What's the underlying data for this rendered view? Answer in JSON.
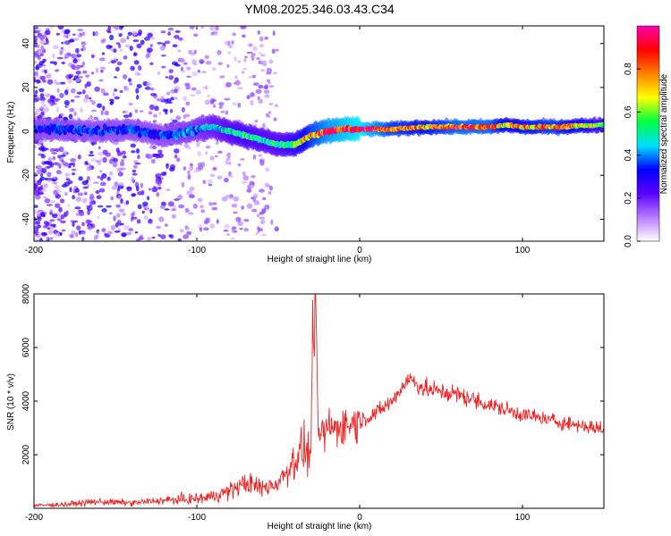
{
  "title": "YM08.2025.346.03.43.C34",
  "chart_data": [
    {
      "type": "heatmap",
      "xlabel": "Height of straight line (km)",
      "ylabel": "Frequency (Hz)",
      "xlim": [
        -200,
        150
      ],
      "ylim": [
        -50,
        48
      ],
      "xticks": [
        -200,
        -100,
        0,
        100
      ],
      "yticks": [
        -40,
        -20,
        0,
        20,
        40
      ],
      "colorbar": {
        "label": "Normalized spectral amplitude",
        "range": [
          0,
          1
        ],
        "ticks": [
          "0.0",
          "0.2",
          "0.4",
          "0.6",
          "0.8"
        ],
        "colors": [
          "#ffffff",
          "#b77bff",
          "#5a00ff",
          "#0000ff",
          "#00e0ff",
          "#00ff40",
          "#ffff00",
          "#ff8000",
          "#ff0000",
          "#ff00b0"
        ]
      },
      "ridge": {
        "x": [
          -200,
          -180,
          -160,
          -140,
          -120,
          -110,
          -100,
          -90,
          -80,
          -70,
          -60,
          -50,
          -40,
          -35,
          -30,
          -20,
          -10,
          0,
          20,
          40,
          60,
          80,
          90,
          100,
          120,
          150
        ],
        "y": [
          1,
          1,
          0,
          1,
          -2,
          -1,
          1,
          2,
          0,
          -2,
          -4,
          -6,
          -6,
          -4,
          -2,
          0,
          1,
          1,
          1,
          2,
          2,
          2,
          3,
          2,
          2,
          3
        ],
        "amplitude": [
          0.35,
          0.35,
          0.35,
          0.35,
          0.35,
          0.38,
          0.4,
          0.45,
          0.5,
          0.55,
          0.5,
          0.5,
          0.6,
          0.7,
          0.8,
          0.9,
          0.95,
          1.0,
          0.8,
          0.75,
          0.85,
          0.85,
          0.7,
          0.75,
          0.8,
          0.6
        ]
      }
    },
    {
      "type": "line",
      "xlabel": "Height of straight line (km)",
      "ylabel": "SNR (10 * v/v)",
      "xlim": [
        -200,
        150
      ],
      "ylim": [
        0,
        8000
      ],
      "xticks": [
        -200,
        -100,
        0,
        100
      ],
      "yticks": [
        2000,
        4000,
        6000,
        8000
      ],
      "color": "#ee2222",
      "series": {
        "name": "SNR",
        "x": [
          -200,
          -180,
          -160,
          -140,
          -120,
          -100,
          -90,
          -80,
          -70,
          -60,
          -50,
          -45,
          -40,
          -35,
          -30,
          -28,
          -25,
          -20,
          -10,
          0,
          10,
          20,
          30,
          40,
          60,
          80,
          100,
          120,
          150
        ],
        "y": [
          100,
          150,
          250,
          200,
          300,
          350,
          450,
          650,
          950,
          750,
          950,
          1400,
          1800,
          2200,
          2000,
          8000,
          2600,
          2950,
          3100,
          3250,
          3550,
          4000,
          4850,
          4450,
          4250,
          3850,
          3500,
          3250,
          2950
        ]
      }
    }
  ]
}
